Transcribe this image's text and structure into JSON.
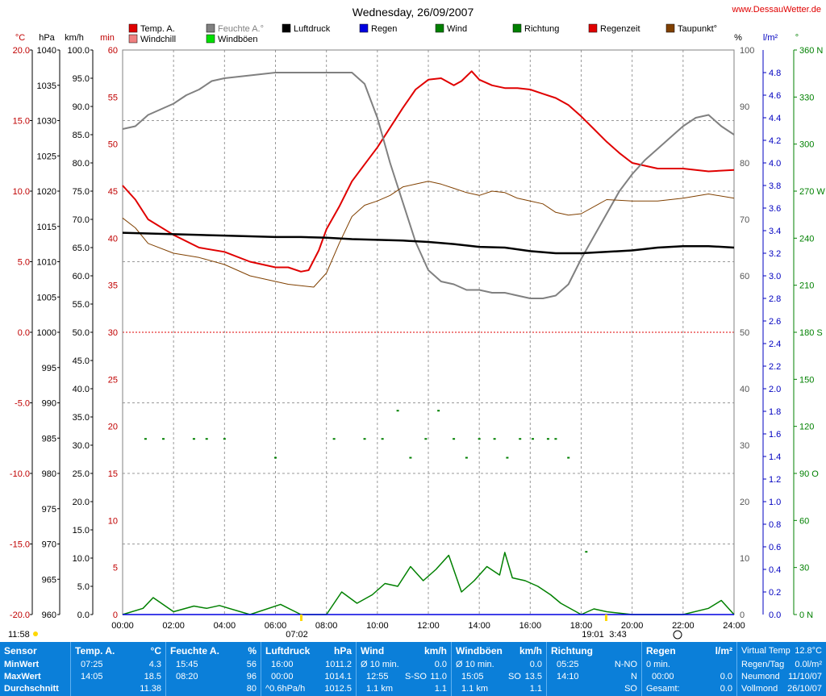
{
  "header": {
    "title": "Wednesday, 26/09/2007",
    "site": "www.DessauWetter.de"
  },
  "legend": [
    {
      "label": "Temp. A.",
      "color": "#e00000"
    },
    {
      "label": "Windchill",
      "color": "#f08080"
    },
    {
      "label": "Feuchte A.°",
      "color": "#808080"
    },
    {
      "label": "Windböen",
      "color": "#00e000"
    },
    {
      "label": "Luftdruck",
      "color": "#000000"
    },
    {
      "label": "Regen",
      "color": "#0000e0"
    },
    {
      "label": "Wind",
      "color": "#008000"
    },
    {
      "label": "Richtung",
      "color": "#008000"
    },
    {
      "label": "Regenzeit",
      "color": "#e00000"
    },
    {
      "label": "Taupunkt°",
      "color": "#804000"
    }
  ],
  "axis_units": [
    "°C",
    "hPa",
    "km/h",
    "min",
    "%",
    "l/m²",
    "°"
  ],
  "axes": {
    "celsius": [
      "20.0",
      "15.0",
      "10.0",
      "5.0",
      "0.0",
      "-5.0",
      "-10.0",
      "-15.0",
      "-20.0"
    ],
    "hpa": [
      "1040",
      "1035",
      "1030",
      "1025",
      "1020",
      "1015",
      "1010",
      "1005",
      "1000",
      "995",
      "990",
      "985",
      "980",
      "975",
      "970",
      "965",
      "960"
    ],
    "kmh": [
      "100.0",
      "95.0",
      "90.0",
      "85.0",
      "80.0",
      "75.0",
      "70.0",
      "65.0",
      "60.0",
      "55.0",
      "50.0",
      "45.0",
      "40.0",
      "35.0",
      "30.0",
      "25.0",
      "20.0",
      "15.0",
      "10.0",
      "5.0",
      "0.0"
    ],
    "minutes": [
      "60",
      "55",
      "50",
      "45",
      "40",
      "35",
      "30",
      "25",
      "20",
      "15",
      "10",
      "5",
      "0"
    ],
    "percent": [
      "100",
      "90",
      "80",
      "70",
      "60",
      "50",
      "40",
      "30",
      "20",
      "10",
      "0"
    ],
    "rain": [
      "4.8",
      "4.6",
      "4.4",
      "4.2",
      "4.0",
      "3.8",
      "3.6",
      "3.4",
      "3.2",
      "3.0",
      "2.8",
      "2.6",
      "2.4",
      "2.2",
      "2.0",
      "1.8",
      "1.6",
      "1.4",
      "1.2",
      "1.0",
      "0.8",
      "0.6",
      "0.4",
      "0.2",
      "0.0"
    ],
    "direction": [
      "360 N",
      "330",
      "300",
      "270 W",
      "240",
      "210",
      "180 S",
      "150",
      "120",
      "90 O",
      "60",
      "30",
      "0 N"
    ],
    "time": [
      "00:00",
      "02:00",
      "04:00",
      "06:00",
      "08:00",
      "10:00",
      "12:00",
      "14:00",
      "16:00",
      "18:00",
      "20:00",
      "22:00",
      "24:00"
    ]
  },
  "sun": {
    "left": "11:58",
    "sunrise": "07:02",
    "sunset": "19:01",
    "sunset2": "3:43"
  },
  "chart_data": {
    "type": "line",
    "title": "Wednesday, 26/09/2007",
    "xlabel": "",
    "x_range": [
      "00:00",
      "24:00"
    ],
    "series": [
      {
        "name": "Temp. A.",
        "unit": "°C",
        "x": [
          0,
          0.5,
          1,
          2,
          3,
          4,
          5,
          6,
          6.5,
          7,
          7.3,
          7.7,
          8,
          8.5,
          9,
          9.5,
          10,
          10.5,
          11,
          11.5,
          12,
          12.5,
          13,
          13.3,
          13.7,
          14,
          14.5,
          15,
          15.5,
          16,
          16.5,
          17,
          17.5,
          18,
          18.5,
          19,
          19.5,
          20,
          21,
          22,
          23,
          24
        ],
        "y": [
          10.4,
          9.4,
          8.0,
          6.9,
          6.0,
          5.7,
          5.0,
          4.6,
          4.6,
          4.3,
          4.4,
          5.8,
          7.3,
          8.9,
          10.7,
          11.9,
          13.1,
          14.5,
          15.9,
          17.2,
          17.9,
          18.0,
          17.5,
          17.8,
          18.5,
          17.9,
          17.5,
          17.3,
          17.3,
          17.2,
          16.9,
          16.6,
          16.1,
          15.3,
          14.4,
          13.5,
          12.7,
          12.0,
          11.6,
          11.6,
          11.4,
          11.5
        ]
      },
      {
        "name": "Feuchte A.°",
        "unit": "%",
        "x": [
          0,
          0.5,
          1,
          1.5,
          2,
          2.5,
          3,
          3.5,
          4,
          5,
          6,
          7,
          7.5,
          8,
          8.5,
          9,
          9.5,
          10,
          10.5,
          11,
          11.5,
          12,
          12.5,
          13,
          13.5,
          14,
          14.5,
          15,
          15.5,
          16,
          16.5,
          17,
          17.5,
          18,
          18.5,
          19,
          19.5,
          20,
          20.5,
          21,
          21.5,
          22,
          22.5,
          23,
          23.5,
          24
        ],
        "y": [
          86.0,
          86.5,
          88.5,
          89.5,
          90.5,
          92.0,
          93.0,
          94.5,
          95.0,
          95.5,
          96.0,
          96.0,
          96.0,
          96.0,
          96.0,
          96.0,
          94.0,
          88.0,
          80.0,
          73.0,
          66.0,
          61.0,
          59.0,
          58.5,
          57.5,
          57.5,
          57.0,
          57.0,
          56.5,
          56.0,
          56.0,
          56.5,
          58.5,
          63.0,
          67.0,
          71.0,
          75.0,
          78.0,
          80.5,
          82.5,
          84.5,
          86.5,
          88.0,
          88.5,
          86.5,
          85.0
        ]
      },
      {
        "name": "Taupunkt°",
        "unit": "°C",
        "x": [
          0,
          0.5,
          1,
          2,
          3,
          4,
          5,
          6,
          6.5,
          7,
          7.5,
          8,
          8.5,
          9,
          9.5,
          10,
          10.5,
          11,
          11.5,
          12,
          12.5,
          13,
          13.5,
          14,
          14.5,
          15,
          15.5,
          16,
          16.5,
          17,
          17.5,
          18,
          19,
          20,
          21,
          22,
          23,
          24
        ],
        "y": [
          8.1,
          7.4,
          6.3,
          5.6,
          5.3,
          4.8,
          4.0,
          3.6,
          3.4,
          3.3,
          3.2,
          4.2,
          6.3,
          8.2,
          9.0,
          9.3,
          9.7,
          10.3,
          10.5,
          10.7,
          10.5,
          10.2,
          9.9,
          9.7,
          10.0,
          9.9,
          9.5,
          9.3,
          9.1,
          8.5,
          8.3,
          8.4,
          9.4,
          9.3,
          9.3,
          9.5,
          9.8,
          9.5
        ]
      },
      {
        "name": "Luftdruck",
        "unit": "hPa",
        "x": [
          0,
          1,
          2,
          3,
          4,
          5,
          6,
          7,
          8,
          9,
          10,
          11,
          12,
          13,
          14,
          15,
          16,
          17,
          18,
          19,
          20,
          21,
          22,
          23,
          24
        ],
        "y": [
          1014.1,
          1014.0,
          1013.9,
          1013.8,
          1013.7,
          1013.6,
          1013.5,
          1013.5,
          1013.4,
          1013.2,
          1013.1,
          1013.0,
          1012.8,
          1012.5,
          1012.1,
          1012.0,
          1011.5,
          1011.2,
          1011.2,
          1011.4,
          1011.6,
          1012.0,
          1012.2,
          1012.2,
          1012.0
        ]
      },
      {
        "name": "Wind",
        "unit": "km/h",
        "x": [
          0,
          0.8,
          1.2,
          2,
          2.8,
          3.3,
          3.8,
          5,
          6.2,
          7,
          8,
          8.6,
          9.2,
          9.8,
          10.3,
          10.8,
          11.3,
          11.8,
          12.3,
          12.8,
          13.3,
          13.8,
          14.3,
          14.8,
          15,
          15.3,
          15.8,
          16.3,
          16.8,
          17.2,
          18,
          18.5,
          19,
          20,
          21,
          22,
          23,
          23.5,
          24
        ],
        "y": [
          0,
          1.1,
          3.0,
          0.5,
          1.5,
          1.1,
          1.6,
          0,
          1.8,
          0,
          0,
          4.0,
          2.0,
          3.5,
          5.5,
          5.0,
          8.5,
          6.0,
          8.0,
          10.5,
          4.0,
          6.0,
          8.5,
          7.0,
          11.0,
          6.5,
          6.0,
          5.0,
          3.5,
          2.0,
          0,
          1.0,
          0.5,
          0,
          0,
          0,
          1.1,
          2.5,
          0
        ]
      },
      {
        "name": "Richtung",
        "unit": "°",
        "x": [
          0.9,
          1.6,
          2.8,
          3.3,
          4.0,
          6.0,
          8.3,
          9.5,
          10.2,
          10.8,
          11.3,
          11.9,
          12.4,
          13.0,
          13.5,
          14.0,
          14.6,
          15.1,
          15.6,
          16.1,
          16.7,
          17.0,
          17.5,
          18.2
        ],
        "y": [
          112,
          112,
          112,
          112,
          112,
          100,
          112,
          112,
          112,
          130,
          100,
          112,
          130,
          112,
          100,
          112,
          112,
          100,
          112,
          112,
          112,
          112,
          100,
          40
        ]
      },
      {
        "name": "Regen",
        "unit": "l/m²",
        "x": [
          0,
          24
        ],
        "y": [
          0.0,
          0.0
        ]
      }
    ]
  },
  "summary": {
    "labels": {
      "sensor": "Sensor",
      "min": "MinWert",
      "max": "MaxWert",
      "avg": "Durchschnitt"
    },
    "temp": {
      "title": "Temp. A.",
      "unit": "°C",
      "min_time": "07:25",
      "min_val": "4.3",
      "max_time": "14:05",
      "max_val": "18.5",
      "avg": "11.38"
    },
    "hum": {
      "title": "Feuchte A.",
      "unit": "%",
      "min_time": "15:45",
      "min_val": "56",
      "max_time": "08:20",
      "max_val": "96",
      "avg": "80"
    },
    "press": {
      "title": "Luftdruck",
      "unit": "hPa",
      "min_time": "16:00",
      "min_val": "1011.2",
      "max_time": "00:00",
      "max_val": "1014.1",
      "trend": "^0.6hPa/h",
      "avg": "1012.5"
    },
    "wind": {
      "title": "Wind",
      "unit": "km/h",
      "r1_label": "Ø 10 min.",
      "r1_val": "0.0",
      "r2_time": "12:55",
      "r2_dir": "S-SO",
      "r2_val": "11.0",
      "r3_label": "1.1 km",
      "r3_val": "1.1"
    },
    "gust": {
      "title": "Windböen",
      "unit": "km/h",
      "r1_label": "Ø 10 min.",
      "r1_val": "0.0",
      "r2_time": "15:05",
      "r2_dir": "SO",
      "r2_val": "13.5",
      "r3_label": "1.1 km",
      "r3_val": "1.1"
    },
    "dir": {
      "title": "Richtung",
      "r1_time": "05:25",
      "r1_val": "N-NO",
      "r2_time": "14:10",
      "r2_val": "N",
      "r3_val": "SO"
    },
    "rain": {
      "title": "Regen",
      "unit": "l/m²",
      "r1_label": "0 min.",
      "r2_time": "00:00",
      "r2_val": "0.0",
      "r3_label": "Gesamt:",
      "r3_val": "0.0"
    },
    "extra": {
      "r0_label": "Virtual Temp",
      "r0_val": "12.8°C",
      "r1_label": "Regen/Tag",
      "r1_val": "0.0l/m²",
      "r2_label": "Neumond",
      "r2_val": "11/10/07",
      "r3_label": "Vollmond",
      "r3_val": "26/10/07"
    }
  }
}
